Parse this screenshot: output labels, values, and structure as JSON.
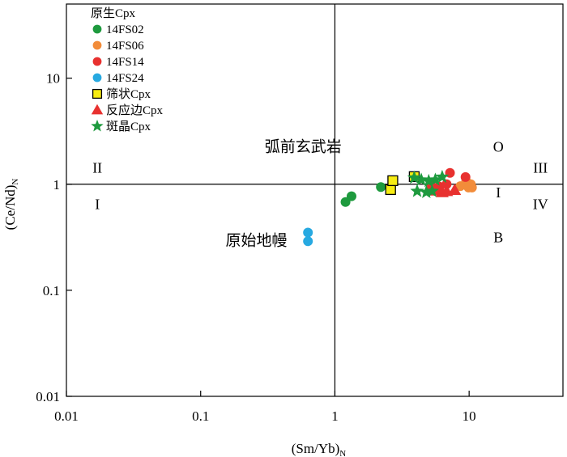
{
  "chart_data": {
    "type": "scatter",
    "xscale": "log",
    "yscale": "log",
    "xlim": [
      0.01,
      50
    ],
    "ylim": [
      0.01,
      50
    ],
    "xlabel": "(Sm/Yb)",
    "xlabel_sub": "N",
    "ylabel": "(Ce/Nd)",
    "ylabel_sub": "N",
    "x_ticks": [
      {
        "value": 0.01,
        "label": "0.01"
      },
      {
        "value": 0.1,
        "label": "0.1"
      },
      {
        "value": 1,
        "label": "1"
      },
      {
        "value": 10,
        "label": "10"
      }
    ],
    "y_ticks": [
      {
        "value": 0.01,
        "label": "0.01"
      },
      {
        "value": 0.1,
        "label": "0.1"
      },
      {
        "value": 1,
        "label": "1"
      },
      {
        "value": 10,
        "label": "10"
      }
    ],
    "grid": false,
    "reference_lines": [
      {
        "axis": "x",
        "value": 1
      },
      {
        "axis": "y",
        "value": 1
      }
    ],
    "legend": {
      "placement": "top-left",
      "title": "原生Cpx",
      "entries": [
        {
          "label": "14FS02",
          "marker": "circle",
          "color": "#1e9a3e"
        },
        {
          "label": "14FS06",
          "marker": "circle",
          "color": "#f28c3a"
        },
        {
          "label": "14FS14",
          "marker": "circle",
          "color": "#e8312f"
        },
        {
          "label": "14FS24",
          "marker": "circle",
          "color": "#27a9e1"
        },
        {
          "label": "筛状Cpx",
          "marker": "square",
          "color": "#f7ec13"
        },
        {
          "label": "反应边Cpx",
          "marker": "triangle",
          "color": "#e8312f"
        },
        {
          "label": "斑晶Cpx",
          "marker": "star",
          "color": "#1e9a3e"
        }
      ]
    },
    "annotations": [
      {
        "text": "弧前玄武岩",
        "x": 0.58,
        "y": 2.3,
        "kind": "cn"
      },
      {
        "text": "原始地幔",
        "x": 0.26,
        "y": 0.3,
        "kind": "cn"
      },
      {
        "text": "II",
        "x": 0.017,
        "y": 1.45,
        "kind": "roman"
      },
      {
        "text": "I",
        "x": 0.017,
        "y": 0.66,
        "kind": "roman"
      },
      {
        "text": "III",
        "x": 34,
        "y": 1.45,
        "kind": "roman"
      },
      {
        "text": "IV",
        "x": 34,
        "y": 0.66,
        "kind": "roman"
      },
      {
        "text": "O",
        "x": 16.5,
        "y": 2.3,
        "kind": "roman"
      },
      {
        "text": "I",
        "x": 16.5,
        "y": 0.85,
        "kind": "roman"
      },
      {
        "text": "B",
        "x": 16.5,
        "y": 0.32,
        "kind": "roman"
      }
    ],
    "series": [
      {
        "name": "14FS02",
        "marker": "circle",
        "color": "#1e9a3e",
        "points": [
          [
            1.2,
            0.68
          ],
          [
            1.33,
            0.77
          ],
          [
            2.2,
            0.94
          ]
        ]
      },
      {
        "name": "14FS06",
        "marker": "circle",
        "color": "#f28c3a",
        "points": [
          [
            8.6,
            0.96
          ],
          [
            9.5,
            1.07
          ],
          [
            10.3,
            1.0
          ],
          [
            10.5,
            0.93
          ],
          [
            9.9,
            0.93
          ]
        ]
      },
      {
        "name": "14FS14",
        "marker": "circle",
        "color": "#e8312f",
        "points": [
          [
            5.2,
            0.98
          ],
          [
            6.0,
            0.95
          ],
          [
            6.8,
            1.0
          ],
          [
            7.2,
            1.28
          ],
          [
            9.4,
            1.17
          ]
        ]
      },
      {
        "name": "14FS24",
        "marker": "circle",
        "color": "#27a9e1",
        "points": [
          [
            0.63,
            0.35
          ],
          [
            0.63,
            0.29
          ]
        ]
      },
      {
        "name": "筛状Cpx",
        "marker": "square",
        "color": "#f7ec13",
        "points": [
          [
            2.6,
            0.89
          ],
          [
            2.7,
            1.08
          ],
          [
            3.9,
            1.18
          ]
        ]
      },
      {
        "name": "反应边Cpx",
        "marker": "triangle",
        "color": "#e8312f",
        "points": [
          [
            5.6,
            0.87
          ],
          [
            6.3,
            0.84
          ],
          [
            6.8,
            0.86
          ],
          [
            7.8,
            0.88
          ],
          [
            6.0,
            0.9
          ]
        ]
      },
      {
        "name": "斑晶Cpx",
        "marker": "star",
        "color": "#1e9a3e",
        "points": [
          [
            3.9,
            1.15
          ],
          [
            4.4,
            1.1
          ],
          [
            5.0,
            1.07
          ],
          [
            5.6,
            1.1
          ],
          [
            6.3,
            1.17
          ],
          [
            4.1,
            0.86
          ],
          [
            4.8,
            0.84
          ],
          [
            5.3,
            0.86
          ]
        ]
      }
    ]
  }
}
